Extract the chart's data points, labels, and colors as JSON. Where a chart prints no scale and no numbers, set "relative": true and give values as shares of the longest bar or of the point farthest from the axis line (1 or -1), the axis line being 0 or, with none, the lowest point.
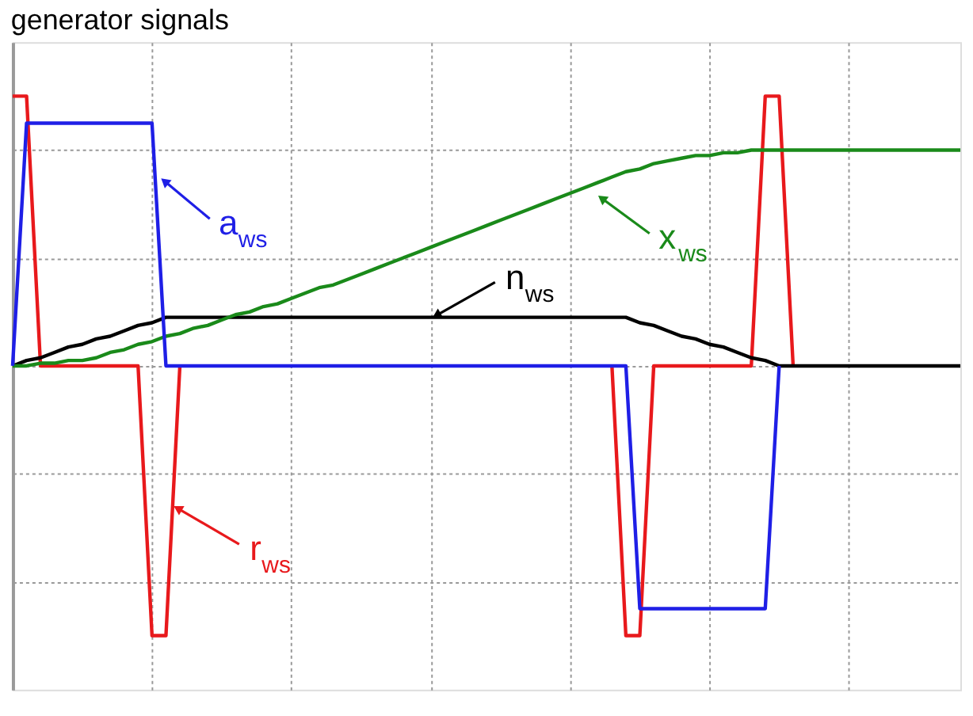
{
  "chart_data": {
    "type": "line",
    "title": "generator signals",
    "relative": true,
    "grid": true,
    "legend": false,
    "marker": "none",
    "line_style": "solid",
    "categories": [
      null,
      null,
      null,
      null,
      null,
      null,
      null,
      null,
      null,
      null,
      null,
      null,
      null,
      null,
      null,
      null,
      null,
      null,
      null,
      null,
      null,
      null,
      null,
      null,
      null,
      null,
      null,
      null,
      null,
      null,
      null,
      null,
      null,
      null,
      null,
      null,
      null,
      null,
      null,
      null,
      null,
      null,
      null,
      null,
      null,
      null,
      null,
      null,
      null,
      null,
      null,
      null,
      null,
      null,
      null,
      null,
      null,
      null,
      null,
      null,
      null,
      null,
      null,
      null,
      null,
      null,
      null,
      null,
      null
    ],
    "series": [
      {
        "color": "#1f1fe6",
        "values": [
          0,
          0.9,
          0.9,
          0.9,
          0.9,
          0.9,
          0.9,
          0.9,
          0.9,
          0.9,
          0.9,
          0,
          0,
          0,
          0,
          0,
          0,
          0,
          0,
          0,
          0,
          0,
          0,
          0,
          0,
          0,
          0,
          0,
          0,
          0,
          0,
          0,
          0,
          0,
          0,
          0,
          0,
          0,
          0,
          0,
          0,
          0,
          0,
          0,
          0,
          -0.9,
          -0.9,
          -0.9,
          -0.9,
          -0.9,
          -0.9,
          -0.9,
          -0.9,
          -0.9,
          -0.9,
          0,
          null,
          null,
          null,
          null,
          null,
          null,
          null,
          null,
          null,
          null,
          null,
          null,
          null
        ]
      },
      {
        "color": "#1a8a1a",
        "values": [
          0,
          0,
          0.01,
          0.01,
          0.02,
          0.02,
          0.03,
          0.05,
          0.06,
          0.08,
          0.09,
          0.11,
          0.12,
          0.14,
          0.15,
          0.17,
          0.19,
          0.2,
          0.22,
          0.23,
          0.25,
          0.27,
          0.29,
          0.3,
          0.32,
          0.34,
          0.36,
          0.38,
          0.4,
          0.42,
          0.44,
          0.46,
          0.48,
          0.5,
          0.52,
          0.54,
          0.56,
          0.58,
          0.6,
          0.62,
          0.64,
          0.66,
          0.68,
          0.7,
          0.72,
          0.73,
          0.75,
          0.76,
          0.77,
          0.78,
          0.78,
          0.79,
          0.79,
          0.8,
          0.8,
          0.8,
          0.8,
          0.8,
          0.8,
          0.8,
          0.8,
          0.8,
          0.8,
          0.8,
          0.8,
          0.8,
          0.8,
          0.8,
          0.8
        ]
      },
      {
        "color": "#000000",
        "values": [
          0,
          0.02,
          0.03,
          0.05,
          0.07,
          0.08,
          0.1,
          0.11,
          0.13,
          0.15,
          0.16,
          0.18,
          0.18,
          0.18,
          0.18,
          0.18,
          0.18,
          0.18,
          0.18,
          0.18,
          0.18,
          0.18,
          0.18,
          0.18,
          0.18,
          0.18,
          0.18,
          0.18,
          0.18,
          0.18,
          0.18,
          0.18,
          0.18,
          0.18,
          0.18,
          0.18,
          0.18,
          0.18,
          0.18,
          0.18,
          0.18,
          0.18,
          0.18,
          0.18,
          0.18,
          0.16,
          0.15,
          0.13,
          0.11,
          0.1,
          0.08,
          0.07,
          0.05,
          0.03,
          0.02,
          0,
          0,
          0,
          0,
          0,
          0,
          0,
          0,
          0,
          0,
          0,
          0,
          0,
          0
        ]
      },
      {
        "color": "#e8191c",
        "values": [
          1,
          1,
          0,
          0,
          0,
          0,
          0,
          0,
          0,
          0,
          -1,
          -1,
          0,
          null,
          null,
          null,
          null,
          null,
          null,
          null,
          null,
          null,
          null,
          null,
          null,
          null,
          null,
          null,
          null,
          null,
          null,
          null,
          null,
          null,
          null,
          null,
          null,
          null,
          null,
          null,
          null,
          null,
          null,
          0,
          -1,
          -1,
          0,
          0,
          0,
          0,
          0,
          0,
          0,
          0,
          1,
          1,
          0,
          null,
          null,
          null,
          null,
          null,
          null,
          null,
          null,
          null,
          null,
          null,
          null
        ]
      }
    ],
    "annotations": [
      "a$_{ws}$",
      "x$_{ws}$",
      "n$_{ws}$",
      "r$_{ws}$"
    ]
  }
}
